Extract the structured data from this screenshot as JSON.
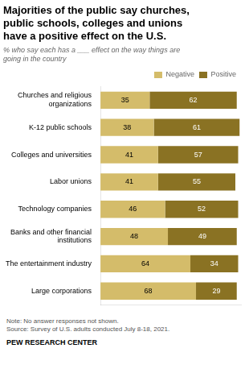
{
  "chart_data": {
    "type": "bar",
    "orientation": "horizontal",
    "stacked": true,
    "title": "Majorities of the public say churches,\npublic schools, colleges and unions\nhave a positive effect on the U.S.",
    "subtitle": "% who say each has a ___ effect on the way things are\ngoing in the country",
    "categories": [
      "Churches and religious\norganizations",
      "K-12 public schools",
      "Colleges and universities",
      "Labor unions",
      "Technology companies",
      "Banks and other financial\ninstitutions",
      "The entertainment industry",
      "Large corporations"
    ],
    "series": [
      {
        "name": "Negative",
        "color": "#d4bc6a",
        "values": [
          35,
          38,
          41,
          41,
          46,
          48,
          64,
          68
        ]
      },
      {
        "name": "Positive",
        "color": "#8a7223",
        "values": [
          62,
          61,
          57,
          55,
          52,
          49,
          34,
          29
        ]
      }
    ],
    "xlim": [
      0,
      100
    ],
    "grid": false,
    "legend": "upper right",
    "data_labels": true,
    "tick_labels": "y",
    "annotations": [
      "Note: No answer responses not shown.\nSource: Survey of U.S. adults conducted July 8-18, 2021.",
      "PEW RESEARCH CENTER"
    ]
  }
}
